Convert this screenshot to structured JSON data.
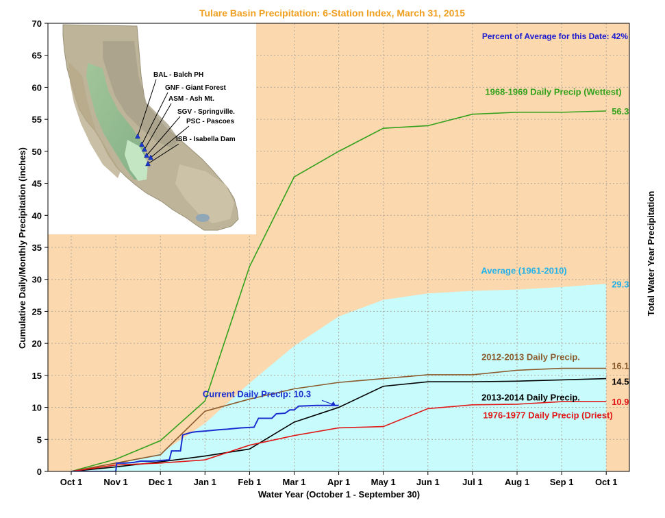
{
  "chart_data": {
    "type": "area",
    "title": "Tulare Basin Precipitation: 6-Station Index, March 31, 2015",
    "xlabel": "Water Year (October 1 - September 30)",
    "ylabel": "Cumulative Daily/Monthly Precipitation (inches)",
    "ylabel_right": "Total Water Year Precipitation",
    "percent_note": "Percent of Average for this Date: 42%",
    "ylim": [
      0,
      70
    ],
    "y_ticks": [
      "0",
      "5",
      "10",
      "15",
      "20",
      "25",
      "30",
      "35",
      "40",
      "45",
      "50",
      "55",
      "60",
      "65",
      "70"
    ],
    "x_ticks": [
      "Oct 1",
      "Nov 1",
      "Dec 1",
      "Jan 1",
      "Feb 1",
      "Mar 1",
      "Apr 1",
      "May 1",
      "Jun 1",
      "Jul 1",
      "Aug 1",
      "Sep 1",
      "Oct 1"
    ],
    "grid": true,
    "colors": {
      "plot_bg": "#fbd8ae",
      "average_fill": "#c8fbfb",
      "wettest": "#33a11c",
      "average_label": "#22b0e8",
      "y2013": "#8a5a2c",
      "y2014": "#000000",
      "driest": "#e01818",
      "current": "#1a2ed0",
      "title": "#f0a020",
      "note": "#1a1ad0"
    },
    "series": [
      {
        "name": "Average (1961-2010)",
        "kind": "area",
        "end_label": "29.3",
        "points": [
          [
            0,
            0
          ],
          [
            1,
            1.0
          ],
          [
            2,
            2.8
          ],
          [
            3,
            7.5
          ],
          [
            4,
            13.8
          ],
          [
            5,
            19.6
          ],
          [
            6,
            24.2
          ],
          [
            7,
            26.8
          ],
          [
            8,
            27.8
          ],
          [
            9,
            28.2
          ],
          [
            10,
            28.4
          ],
          [
            11,
            28.8
          ],
          [
            12,
            29.3
          ]
        ]
      },
      {
        "name": "1968-1969 Daily Precip (Wettest)",
        "kind": "line",
        "end_label": "56.3",
        "points": [
          [
            0,
            0
          ],
          [
            1,
            1.9
          ],
          [
            2,
            4.8
          ],
          [
            3,
            11.0
          ],
          [
            4,
            32.0
          ],
          [
            5,
            46.0
          ],
          [
            6,
            50.0
          ],
          [
            7,
            53.6
          ],
          [
            8,
            54.0
          ],
          [
            9,
            55.8
          ],
          [
            10,
            56.1
          ],
          [
            11,
            56.1
          ],
          [
            12,
            56.3
          ]
        ]
      },
      {
        "name": "2012-2013 Daily Precip.",
        "kind": "line",
        "end_label": "16.1",
        "points": [
          [
            0,
            0
          ],
          [
            1,
            1.3
          ],
          [
            2,
            2.6
          ],
          [
            3,
            9.4
          ],
          [
            4,
            11.3
          ],
          [
            5,
            12.9
          ],
          [
            6,
            13.9
          ],
          [
            7,
            14.5
          ],
          [
            8,
            15.1
          ],
          [
            9,
            15.1
          ],
          [
            10,
            15.8
          ],
          [
            11,
            16.1
          ],
          [
            12,
            16.1
          ]
        ]
      },
      {
        "name": "2013-2014 Daily Precip.",
        "kind": "line",
        "end_label": "14.5",
        "points": [
          [
            0,
            0
          ],
          [
            1,
            0.7
          ],
          [
            2,
            1.5
          ],
          [
            3,
            2.4
          ],
          [
            4,
            3.5
          ],
          [
            5,
            7.7
          ],
          [
            6,
            10.0
          ],
          [
            7,
            13.3
          ],
          [
            8,
            14.0
          ],
          [
            9,
            14.0
          ],
          [
            10,
            14.1
          ],
          [
            11,
            14.3
          ],
          [
            12,
            14.5
          ]
        ]
      },
      {
        "name": "1976-1977 Daily Precip (Driest)",
        "kind": "line",
        "end_label": "10.9",
        "points": [
          [
            0,
            0
          ],
          [
            1,
            1.0
          ],
          [
            2,
            1.3
          ],
          [
            3,
            1.8
          ],
          [
            4,
            4.1
          ],
          [
            5,
            5.6
          ],
          [
            6,
            6.8
          ],
          [
            7,
            7.0
          ],
          [
            8,
            9.8
          ],
          [
            9,
            10.4
          ],
          [
            10,
            10.5
          ],
          [
            11,
            10.9
          ],
          [
            12,
            10.9
          ]
        ]
      },
      {
        "name": "Current Daily Precip: 10.3",
        "kind": "line",
        "points": [
          [
            0,
            0
          ],
          [
            1,
            0
          ],
          [
            1.02,
            1.3
          ],
          [
            1.2,
            1.3
          ],
          [
            1.4,
            1.4
          ],
          [
            1.55,
            1.6
          ],
          [
            1.8,
            1.6
          ],
          [
            2,
            1.7
          ],
          [
            2.2,
            1.8
          ],
          [
            2.25,
            3.2
          ],
          [
            2.45,
            3.2
          ],
          [
            2.5,
            5.7
          ],
          [
            2.6,
            5.9
          ],
          [
            2.7,
            6.1
          ],
          [
            2.8,
            6.2
          ],
          [
            3.0,
            6.3
          ],
          [
            3.3,
            6.5
          ],
          [
            3.5,
            6.6
          ],
          [
            3.8,
            6.8
          ],
          [
            4.1,
            6.9
          ],
          [
            4.2,
            8.3
          ],
          [
            4.5,
            8.3
          ],
          [
            4.6,
            9.0
          ],
          [
            4.8,
            9.1
          ],
          [
            4.9,
            9.6
          ],
          [
            5.0,
            9.6
          ],
          [
            5.1,
            10.2
          ],
          [
            5.5,
            10.3
          ],
          [
            6.0,
            10.3
          ]
        ]
      }
    ],
    "map": {
      "stations": [
        {
          "label": "BAL - Balch PH"
        },
        {
          "label": "GNF - Giant Forest"
        },
        {
          "label": "ASM - Ash Mt."
        },
        {
          "label": "SGV - Springville."
        },
        {
          "label": "PSC - Pascoes"
        },
        {
          "label": "ISB - Isabella Dam"
        }
      ]
    }
  }
}
